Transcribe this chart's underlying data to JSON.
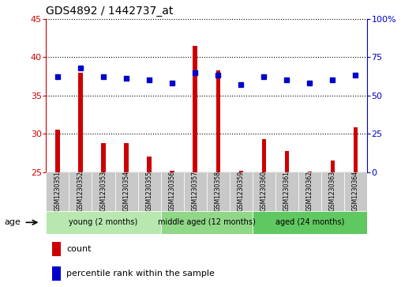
{
  "title": "GDS4892 / 1442737_at",
  "samples": [
    "GSM1230351",
    "GSM1230352",
    "GSM1230353",
    "GSM1230354",
    "GSM1230355",
    "GSM1230356",
    "GSM1230357",
    "GSM1230358",
    "GSM1230359",
    "GSM1230360",
    "GSM1230361",
    "GSM1230362",
    "GSM1230363",
    "GSM1230364"
  ],
  "counts": [
    30.5,
    38.0,
    28.8,
    28.8,
    27.0,
    25.2,
    41.5,
    38.3,
    25.2,
    29.3,
    27.8,
    25.1,
    26.5,
    30.8
  ],
  "percentile": [
    62,
    68,
    62,
    61,
    60,
    58,
    65,
    63,
    57,
    62,
    60,
    58,
    60,
    63
  ],
  "ylim_left": [
    25,
    45
  ],
  "ylim_right": [
    0,
    100
  ],
  "yticks_left": [
    25,
    30,
    35,
    40,
    45
  ],
  "yticks_right": [
    0,
    25,
    50,
    75,
    100
  ],
  "bar_color": "#cc0000",
  "dot_color": "#0000cc",
  "groups": [
    {
      "label": "young (2 months)",
      "start": 0,
      "end": 5,
      "color": "#b8e8b0"
    },
    {
      "label": "middle aged (12 months)",
      "start": 5,
      "end": 9,
      "color": "#90d888"
    },
    {
      "label": "aged (24 months)",
      "start": 9,
      "end": 14,
      "color": "#60c860"
    }
  ],
  "age_label": "age",
  "legend_count_label": "count",
  "legend_percentile_label": "percentile rank within the sample",
  "grid_color": "#000000",
  "left_axis_color": "#cc0000",
  "right_axis_color": "#0000cc",
  "sample_bg_color": "#c8c8c8",
  "bar_width": 0.18,
  "dot_size": 4.5,
  "title_fontsize": 10,
  "axis_fontsize": 8,
  "sample_fontsize": 5.5,
  "group_fontsize": 7.0,
  "legend_fontsize": 8
}
